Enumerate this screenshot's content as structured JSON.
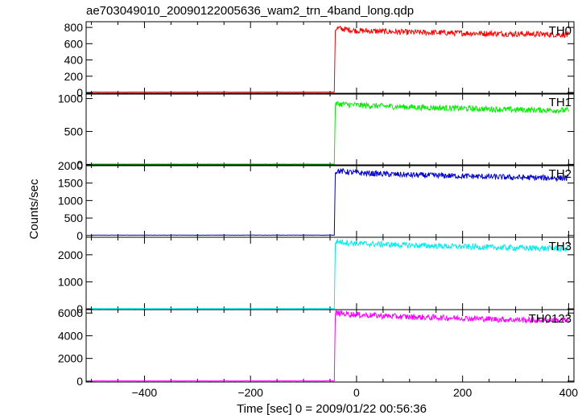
{
  "chart_data": {
    "type": "line",
    "title": "ae703049010_20090122005636_wam2_trn_4band_long.qdp",
    "xlabel": "Time [sec] 0 = 2009/01/22 00:56:36",
    "ylabel": "Counts/sec",
    "xlim": [
      -510,
      410
    ],
    "xticks": [
      -400,
      -200,
      0,
      200,
      400
    ],
    "grid": false,
    "step_time": -40,
    "panels": [
      {
        "name": "TH0",
        "color": "#ff0000",
        "ylim": [
          -20,
          870
        ],
        "yticks": [
          0,
          200,
          400,
          600,
          800
        ],
        "series": {
          "x": [
            -500,
            -42,
            -40,
            -38,
            0,
            100,
            200,
            300,
            400
          ],
          "y": [
            5,
            5,
            760,
            790,
            760,
            740,
            730,
            720,
            710
          ]
        }
      },
      {
        "name": "TH1",
        "color": "#00ee00",
        "ylim": [
          -20,
          1080
        ],
        "yticks": [
          0,
          500,
          1000
        ],
        "series": {
          "x": [
            -500,
            -42,
            -40,
            -38,
            0,
            100,
            200,
            300,
            400
          ],
          "y": [
            5,
            5,
            880,
            920,
            900,
            870,
            850,
            830,
            820
          ]
        }
      },
      {
        "name": "TH2",
        "color": "#0000cc",
        "ylim": [
          -50,
          2020
        ],
        "yticks": [
          0,
          500,
          1000,
          1500,
          2000
        ],
        "series": {
          "x": [
            -500,
            -42,
            -40,
            -38,
            0,
            100,
            200,
            300,
            400
          ],
          "y": [
            10,
            10,
            1800,
            1850,
            1790,
            1730,
            1700,
            1660,
            1640
          ]
        }
      },
      {
        "name": "TH3",
        "color": "#00eeee",
        "ylim": [
          -30,
          2650
        ],
        "yticks": [
          0,
          1000,
          2000
        ],
        "series": {
          "x": [
            -500,
            -42,
            -40,
            -38,
            0,
            100,
            200,
            300,
            400
          ],
          "y": [
            10,
            10,
            2450,
            2500,
            2420,
            2350,
            2300,
            2260,
            2220
          ]
        }
      },
      {
        "name": "TH0123",
        "color": "#ff00ff",
        "ylim": [
          -80,
          6300
        ],
        "yticks": [
          0,
          2000,
          4000,
          6000
        ],
        "series": {
          "x": [
            -500,
            -42,
            -40,
            -38,
            0,
            100,
            200,
            300,
            400
          ],
          "y": [
            20,
            20,
            5900,
            6000,
            5850,
            5650,
            5550,
            5400,
            5350
          ]
        }
      }
    ]
  }
}
